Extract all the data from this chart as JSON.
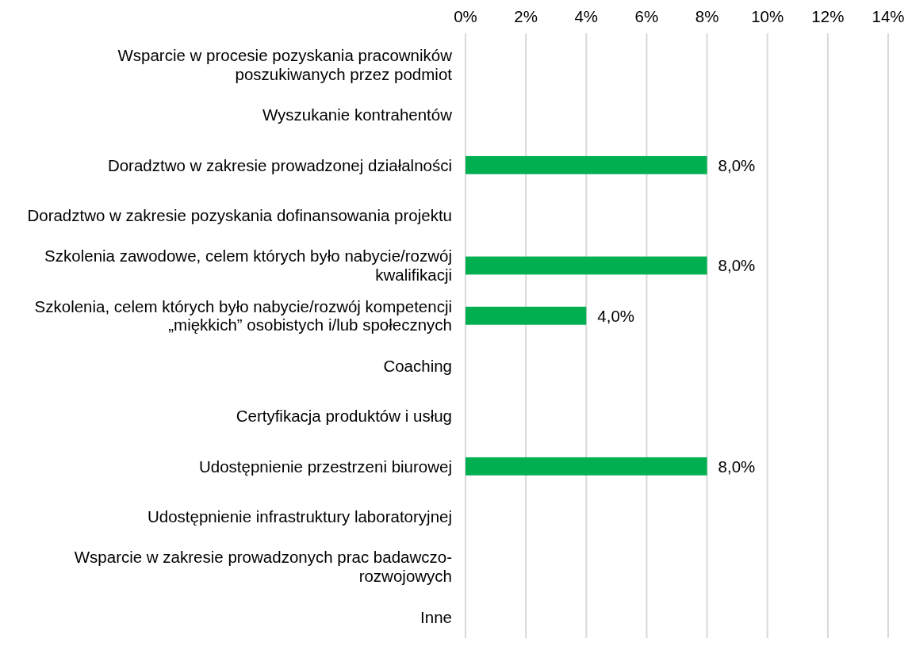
{
  "chart_data": {
    "type": "bar",
    "orientation": "horizontal",
    "categories": [
      "Wsparcie w procesie pozyskania pracowników poszukiwanych przez podmiot",
      "Wyszukanie kontrahentów",
      "Doradztwo w zakresie prowadzonej działalności",
      "Doradztwo w zakresie pozyskania dofinansowania projektu",
      "Szkolenia zawodowe, celem których było nabycie/rozwój kwalifikacji",
      "Szkolenia, celem których było nabycie/rozwój kompetencji „miękkich” osobistych i/lub społecznych",
      "Coaching",
      "Certyfikacja produktów i usług",
      "Udostępnienie przestrzeni biurowej",
      "Udostępnienie infrastruktury laboratoryjnej",
      "Wsparcie w zakresie prowadzonych prac badawczo-rozwojowych",
      "Inne"
    ],
    "values": [
      0,
      0,
      8,
      0,
      8,
      4,
      0,
      0,
      8,
      0,
      0,
      0
    ],
    "value_labels": [
      null,
      null,
      "8,0%",
      null,
      "8,0%",
      "4,0%",
      null,
      null,
      "8,0%",
      null,
      null,
      null
    ],
    "color": "#00b050",
    "xlim": [
      0,
      14
    ],
    "xticks": [
      {
        "value": 0,
        "label": "0%"
      },
      {
        "value": 2,
        "label": "2%"
      },
      {
        "value": 4,
        "label": "4%"
      },
      {
        "value": 6,
        "label": "6%"
      },
      {
        "value": 8,
        "label": "8%"
      },
      {
        "value": 10,
        "label": "10%"
      },
      {
        "value": 12,
        "label": "12%"
      },
      {
        "value": 14,
        "label": "14%"
      }
    ],
    "grid": "x"
  }
}
